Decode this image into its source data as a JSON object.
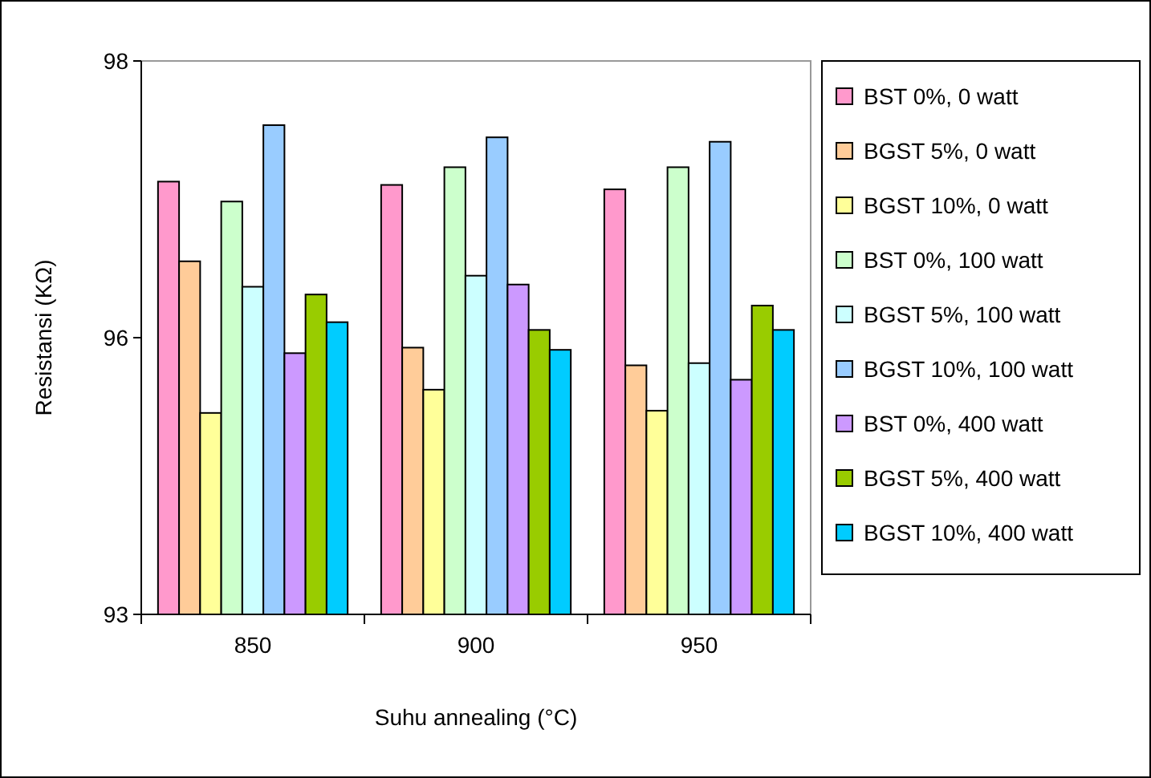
{
  "chart_data": {
    "type": "bar",
    "xlabel": "Suhu annealing (°C)",
    "ylabel": "Resistansi (KΩ)",
    "categories": [
      "850",
      "900",
      "950"
    ],
    "ylim": [
      93,
      98
    ],
    "yticks": [
      93,
      {
        "value": 95.5,
        "label": "96"
      },
      98
    ],
    "grid": false,
    "legend": "right",
    "series": [
      {
        "name": "BST 0%, 0 watt",
        "color": "#ff99cc",
        "values": [
          96.91,
          96.88,
          96.84
        ]
      },
      {
        "name": "BGST 5%, 0 watt",
        "color": "#ffcc99",
        "values": [
          96.19,
          95.41,
          95.25
        ]
      },
      {
        "name": "BGST 10%, 0 watt",
        "color": "#ffff99",
        "values": [
          94.82,
          95.03,
          94.84
        ]
      },
      {
        "name": "BST 0%, 100 watt",
        "color": "#ccffcc",
        "values": [
          96.73,
          97.04,
          97.04
        ]
      },
      {
        "name": "BGST 5%, 100 watt",
        "color": "#ccffff",
        "values": [
          95.96,
          96.06,
          95.27
        ]
      },
      {
        "name": "BGST 10%, 100 watt",
        "color": "#99ccff",
        "values": [
          97.42,
          97.31,
          97.27
        ]
      },
      {
        "name": "BST 0%, 400 watt",
        "color": "#cc99ff",
        "values": [
          95.36,
          95.98,
          95.12
        ]
      },
      {
        "name": "BGST 5%, 400 watt",
        "color": "#99cc00",
        "values": [
          95.89,
          95.57,
          95.79
        ]
      },
      {
        "name": "BGST 10%, 400 watt",
        "color": "#00ccff",
        "values": [
          95.64,
          95.39,
          95.57
        ]
      }
    ]
  }
}
